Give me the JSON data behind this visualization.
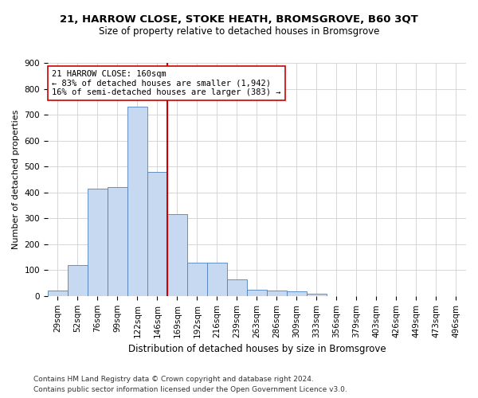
{
  "title1": "21, HARROW CLOSE, STOKE HEATH, BROMSGROVE, B60 3QT",
  "title2": "Size of property relative to detached houses in Bromsgrove",
  "xlabel": "Distribution of detached houses by size in Bromsgrove",
  "ylabel": "Number of detached properties",
  "footnote1": "Contains HM Land Registry data © Crown copyright and database right 2024.",
  "footnote2": "Contains public sector information licensed under the Open Government Licence v3.0.",
  "bar_labels": [
    "29sqm",
    "52sqm",
    "76sqm",
    "99sqm",
    "122sqm",
    "146sqm",
    "169sqm",
    "192sqm",
    "216sqm",
    "239sqm",
    "263sqm",
    "286sqm",
    "309sqm",
    "333sqm",
    "356sqm",
    "379sqm",
    "403sqm",
    "426sqm",
    "449sqm",
    "473sqm",
    "496sqm"
  ],
  "bar_values": [
    20,
    120,
    415,
    420,
    730,
    480,
    315,
    130,
    130,
    65,
    25,
    20,
    17,
    10,
    0,
    0,
    0,
    0,
    0,
    0,
    0
  ],
  "bar_color": "#c6d9f0",
  "bar_edge_color": "#4f81bd",
  "vline_index": 6,
  "vline_color": "#cc0000",
  "annotation_line1": "21 HARROW CLOSE: 160sqm",
  "annotation_line2": "← 83% of detached houses are smaller (1,942)",
  "annotation_line3": "16% of semi-detached houses are larger (383) →",
  "annotation_box_color": "#ffffff",
  "annotation_box_edge": "#cc0000",
  "ylim": [
    0,
    900
  ],
  "yticks": [
    0,
    100,
    200,
    300,
    400,
    500,
    600,
    700,
    800,
    900
  ],
  "grid_color": "#d0d0d0",
  "title1_fontsize": 9.5,
  "title2_fontsize": 8.5,
  "xlabel_fontsize": 8.5,
  "ylabel_fontsize": 8,
  "tick_fontsize": 7.5,
  "annot_fontsize": 7.5,
  "footnote_fontsize": 6.5
}
